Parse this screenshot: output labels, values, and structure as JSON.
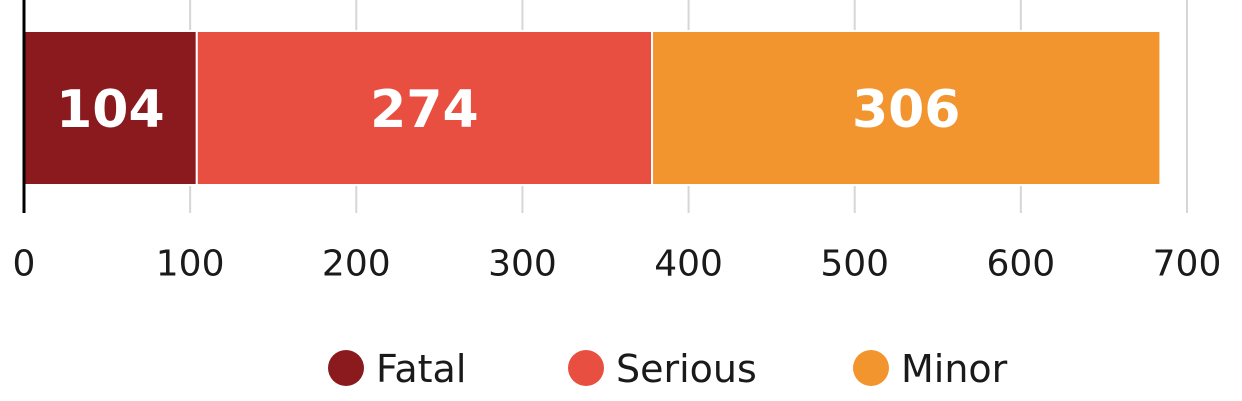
{
  "chart_data": {
    "type": "bar",
    "orientation": "horizontal",
    "stacked": true,
    "categories": [
      ""
    ],
    "series": [
      {
        "name": "Fatal",
        "values": [
          104
        ],
        "color": "#8B1A1E"
      },
      {
        "name": "Serious",
        "values": [
          274
        ],
        "color": "#E84F40"
      },
      {
        "name": "Minor",
        "values": [
          306
        ],
        "color": "#F2952F"
      }
    ],
    "xlim": [
      0,
      700
    ],
    "xticks": [
      "0",
      "100",
      "200",
      "300",
      "400",
      "500",
      "600",
      "700"
    ],
    "data_labels": [
      "104",
      "274",
      "306"
    ],
    "grid": true,
    "legend": {
      "position": "bottom",
      "labels": [
        "Fatal",
        "Serious",
        "Minor"
      ]
    },
    "title": "",
    "xlabel": "",
    "ylabel": ""
  }
}
